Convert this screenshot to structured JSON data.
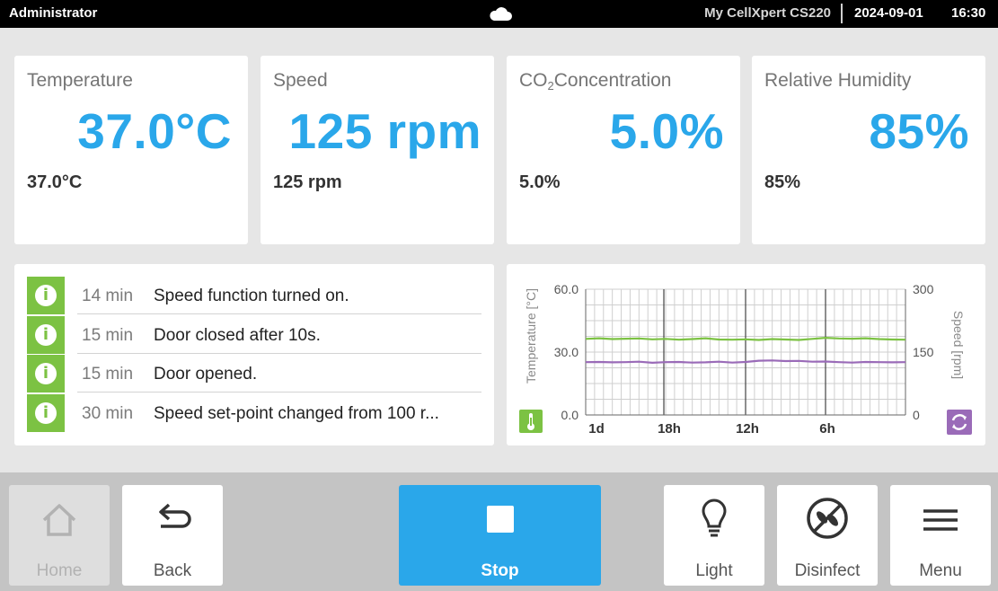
{
  "topbar": {
    "user": "Administrator",
    "device": "My CellXpert CS220",
    "date": "2024-09-01",
    "time": "16:30",
    "cloud_icon": "cloud-icon"
  },
  "cards": {
    "temperature": {
      "title": "Temperature",
      "value": "37.0°C",
      "setpoint": "37.0°C"
    },
    "speed": {
      "title": "Speed",
      "value": "125 rpm",
      "setpoint": "125 rpm"
    },
    "co2": {
      "title_main": "CO",
      "title_sub": "2",
      "title_rest": "Concentration",
      "value": "5.0%",
      "setpoint": "5.0%"
    },
    "humidity": {
      "title": "Relative Humidity",
      "value": "85%",
      "setpoint": "85%"
    }
  },
  "events": [
    {
      "ago": "14 min",
      "message": "Speed function turned on.",
      "icon": "info-icon"
    },
    {
      "ago": "15 min",
      "message": "Door closed after 10s.",
      "icon": "info-icon"
    },
    {
      "ago": "15 min",
      "message": "Door opened.",
      "icon": "info-icon"
    },
    {
      "ago": "30 min",
      "message": "Speed set-point changed from 100 r...",
      "icon": "info-icon"
    }
  ],
  "chart_data": {
    "type": "line",
    "left_axis_label": "Temperature [°C]",
    "right_axis_label": "Speed [rpm]",
    "left_ticks": [
      "60.0",
      "30.0",
      "0.0"
    ],
    "right_ticks": [
      "300",
      "150",
      "0"
    ],
    "x_ticks": [
      "1d",
      "18h",
      "12h",
      "6h"
    ],
    "ylim_left": [
      0,
      60
    ],
    "ylim_right": [
      0,
      300
    ],
    "grid": true,
    "series": [
      {
        "color": "#7cc243",
        "axis": "left",
        "values": [
          36.3,
          36.6,
          36.2,
          36.4,
          36.5,
          36.1,
          36.3,
          35.9,
          36.2,
          36.6,
          36.0,
          35.9,
          36.1,
          35.8,
          36.2,
          36.0,
          35.8,
          36.3,
          36.8,
          36.5,
          36.4,
          36.6,
          36.2,
          36.0,
          35.9
        ]
      },
      {
        "color": "#9a6bb8",
        "axis": "right",
        "values": [
          126,
          126.5,
          125.5,
          126,
          127,
          124.5,
          126,
          126.5,
          125,
          125.5,
          127,
          125,
          126.5,
          129.5,
          130,
          128.5,
          129,
          127,
          127.5,
          126,
          125,
          126.5,
          126,
          125.5,
          126
        ]
      }
    ]
  },
  "bottom": {
    "home": "Home",
    "back": "Back",
    "stop": "Stop",
    "light": "Light",
    "disinfect": "Disinfect",
    "menu": "Menu"
  }
}
